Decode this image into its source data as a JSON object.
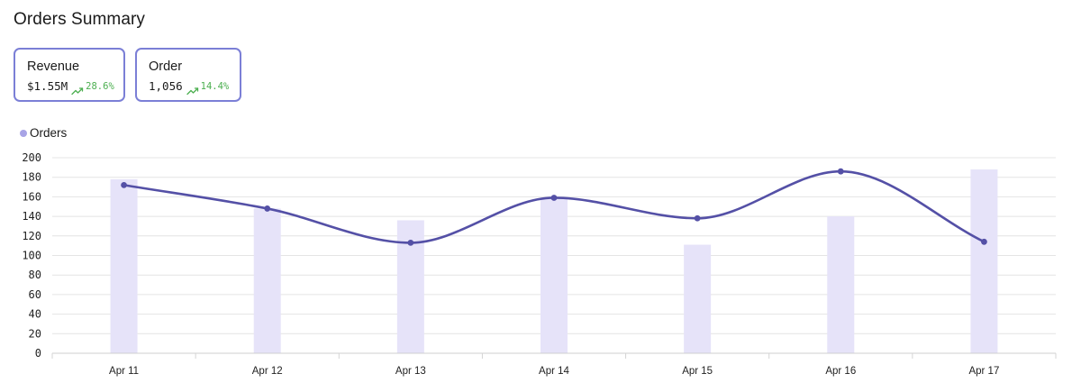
{
  "page": {
    "title": "Orders Summary"
  },
  "cards": [
    {
      "label": "Revenue",
      "value": "$1.55M",
      "change": "28.6%",
      "trend_icon": "trend-up-icon"
    },
    {
      "label": "Order",
      "value": "1,056",
      "change": "14.4%",
      "trend_icon": "trend-up-icon"
    }
  ],
  "colors": {
    "card_border": "#7b7fd6",
    "positive": "#4caf50",
    "line": "#5450a6",
    "bar": "#e6e3f9",
    "legend_dot": "#a8a4e6",
    "grid": "#e4e4e4"
  },
  "chart_data": {
    "type": "bar+line",
    "legend": [
      {
        "name": "Orders",
        "placement": "top-left"
      }
    ],
    "categories": [
      "Apr 11",
      "Apr 12",
      "Apr 13",
      "Apr 14",
      "Apr 15",
      "Apr 16",
      "Apr 17"
    ],
    "series": [
      {
        "type": "bar",
        "values": [
          178,
          148,
          136,
          158,
          111,
          140,
          188
        ]
      },
      {
        "name": "Orders",
        "type": "line",
        "smooth": true,
        "values": [
          172,
          148,
          113,
          159,
          138,
          186,
          114
        ]
      }
    ],
    "ylim": [
      0,
      200
    ],
    "yticks": [
      0,
      20,
      40,
      60,
      80,
      100,
      120,
      140,
      160,
      180,
      200
    ],
    "grid": true
  }
}
